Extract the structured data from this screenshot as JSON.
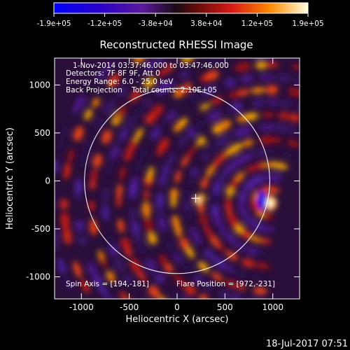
{
  "chart_data": {
    "type": "heatmap",
    "title": "Reconstructed RHESSI Image",
    "xlabel": "Heliocentric X (arcsec)",
    "ylabel": "Heliocentric Y (arcsec)",
    "xlim": [
      -1280,
      1280
    ],
    "ylim": [
      -1230,
      1280
    ],
    "x_ticks": [
      -1000,
      -500,
      0,
      500,
      1000
    ],
    "y_ticks": [
      -1000,
      -500,
      0,
      500,
      1000
    ],
    "colorbar": {
      "ticks": [
        "-1.9e+05",
        "-1.2e+05",
        "-3.8e+04",
        "3.8e+04",
        "1.2e+05",
        "1.9e+05"
      ],
      "min": -190000,
      "max": 190000
    },
    "annotations": [
      "1-Nov-2014 03:37:46.000 to 03:47:46.000",
      "Detectors: 7F 8F 9F, Att 0",
      "Energy Range: 6.0 - 25.0 keV",
      "Back Projection    Total counts: 2.10E+05"
    ],
    "spin_axis_label": "Spin Axis = [194,-181]",
    "flare_position_label": "Flare Position = [972,-231]",
    "spin_axis": [
      194,
      -181
    ],
    "flare_position": [
      972,
      -231
    ],
    "solar_limb_radius": 968,
    "grid": false
  },
  "footer_timestamp": "18-Jul-2017 07:51"
}
